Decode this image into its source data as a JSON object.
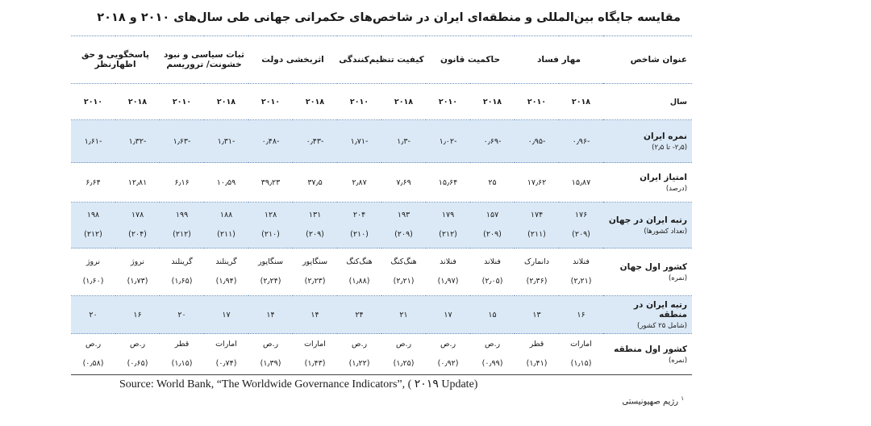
{
  "title": "مقایسه جایگاه بین‌المللی و منطقه‌ای ایران در شاخص‌های حکمرانی جهانی طی سال‌های ۲۰۱۰ و ۲۰۱۸",
  "header": {
    "index_label": "عنوان شاخص",
    "columns": [
      "مهار فساد",
      "حاکمیت قانون",
      "کیفیت تنظیم‌کنندگی",
      "اثربخشی دولت",
      "ثبات سیاسی و نبود خشونت/ تروریسم",
      "پاسخگویی و حق اظهارنظر"
    ]
  },
  "years": {
    "label": "سال",
    "y2018": "۲۰۱۸",
    "y2010": "۲۰۱۰"
  },
  "rows": [
    {
      "label": "نمره ایران",
      "sub": "(۲٫۵- تا ۲٫۵)",
      "values": [
        "-۰٫۹۶",
        "-۰٫۹۵",
        "-۰٫۶۹",
        "-۱٫۰۲",
        "-۱٫۳",
        "-۱٫۷۱",
        "-۰٫۴۳",
        "-۰٫۴۸",
        "-۱٫۳۱",
        "-۱٫۶۳",
        "-۱٫۳۲",
        "-۱٫۶۱"
      ]
    },
    {
      "label": "امتیاز ایران",
      "sub": "(درصد)",
      "values": [
        "۱۵٫۸۷",
        "۱۷٫۶۲",
        "۲۵",
        "۱۵٫۶۴",
        "۷٫۶۹",
        "۲٫۸۷",
        "۳۷٫۵",
        "۳۹٫۲۳",
        "۱۰٫۵۹",
        "۶٫۱۶",
        "۱۲٫۸۱",
        "۶٫۶۴"
      ]
    },
    {
      "label": "رتبه ایران در جهان",
      "sub": "(تعداد کشورها)",
      "values": [
        "۱۷۶",
        "۱۷۴",
        "۱۵۷",
        "۱۷۹",
        "۱۹۳",
        "۲۰۴",
        "۱۳۱",
        "۱۲۸",
        "۱۸۸",
        "۱۹۹",
        "۱۷۸",
        "۱۹۸"
      ],
      "subvalues": [
        "(۲۰۹)",
        "(۲۱۱)",
        "(۲۰۹)",
        "(۲۱۲)",
        "(۲۰۹)",
        "(۲۱۰)",
        "(۲۰۹)",
        "(۲۱۰)",
        "(۲۱۱)",
        "(۲۱۲)",
        "(۲۰۴)",
        "(۲۱۲)"
      ]
    },
    {
      "label": "کشور اول جهان",
      "sub": "(نمره)",
      "values": [
        "فنلاند",
        "دانمارک",
        "فنلاند",
        "فنلاند",
        "هنگ‌کنگ",
        "هنگ‌کنگ",
        "سنگاپور",
        "سنگاپور",
        "گرینلند",
        "گرینلند",
        "نروژ",
        "نروژ"
      ],
      "subvalues": [
        "(۲٫۲۱)",
        "(۲٫۳۶)",
        "(۲٫۰۵)",
        "(۱٫۹۷)",
        "(۲٫۲۱)",
        "(۱٫۸۸)",
        "(۲٫۲۳)",
        "(۲٫۲۴)",
        "(۱٫۹۴)",
        "(۱٫۶۵)",
        "(۱٫۷۳)",
        "(۱٫۶۰)"
      ]
    },
    {
      "label": "رتبه ایران در منطقه",
      "sub": "(شامل ۲۵ کشور)",
      "values": [
        "۱۶",
        "۱۳",
        "۱۵",
        "۱۷",
        "۲۱",
        "۲۴",
        "۱۴",
        "۱۴",
        "۱۷",
        "۲۰",
        "۱۶",
        "۲۰"
      ]
    },
    {
      "label": "کشور اول منطقه",
      "sub": "(نمره)",
      "values": [
        "امارات",
        "قطر",
        "ر.ص",
        "ر.ص",
        "ر.ص",
        "ر.ص",
        "امارات",
        "ر.ص",
        "امارات",
        "قطر",
        "ر.ص",
        "ر.ص"
      ],
      "subvalues": [
        "(۱٫۱۵)",
        "(۱٫۴۱)",
        "(۰٫۹۹)",
        "(۰٫۹۲)",
        "(۱٫۲۵)",
        "(۱٫۲۲)",
        "(۱٫۴۳)",
        "(۱٫۳۹)",
        "(۰٫۷۴)",
        "(۱٫۱۵)",
        "(۰٫۶۵)",
        "(۰٫۵۸)"
      ]
    }
  ],
  "source": "Source: World Bank, “The Worldwide Governance Indicators”, ( ۲۰۱۹ Update)",
  "footnote": {
    "mark": "۱",
    "text": "رژیم صهیونیستی"
  }
}
